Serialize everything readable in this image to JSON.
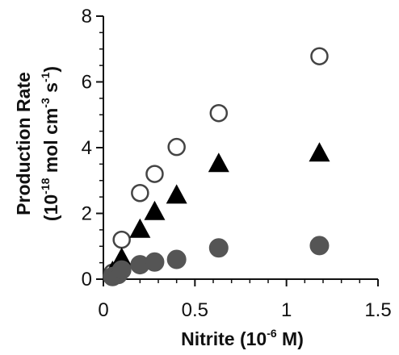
{
  "chart_data": {
    "type": "scatter",
    "xlabel": {
      "prefix": "Nitrite (10",
      "superscript": "-6",
      "suffix": " M)"
    },
    "ylabel": {
      "line1": "Production Rate",
      "line2_prefix": "(10",
      "line2_sup1": "-18",
      "line2_mid": " mol cm",
      "line2_sup2": "-3",
      "line2_s": " s",
      "line2_sup3": "-1",
      "line2_suffix": ")"
    },
    "xlim": [
      0,
      1.5
    ],
    "ylim": [
      0,
      8
    ],
    "x_ticks": [
      0,
      0.5,
      1,
      1.5
    ],
    "x_tick_labels": [
      "0",
      "0.5",
      "1",
      "1.5"
    ],
    "y_ticks": [
      0,
      2,
      4,
      6,
      8
    ],
    "y_tick_labels": [
      "0",
      "2",
      "4",
      "6",
      "8"
    ],
    "minor_ticks": true,
    "grid": false,
    "series": [
      {
        "marker": "circle-open",
        "color": "#444444",
        "points": [
          {
            "x": 0.05,
            "y": 0.2
          },
          {
            "x": 0.1,
            "y": 1.2
          },
          {
            "x": 0.2,
            "y": 2.62
          },
          {
            "x": 0.28,
            "y": 3.2
          },
          {
            "x": 0.4,
            "y": 4.02
          },
          {
            "x": 0.63,
            "y": 5.05
          },
          {
            "x": 1.18,
            "y": 6.78
          }
        ]
      },
      {
        "marker": "triangle-filled",
        "color": "#000000",
        "points": [
          {
            "x": 0.05,
            "y": 0.2
          },
          {
            "x": 0.1,
            "y": 0.6
          },
          {
            "x": 0.2,
            "y": 1.48
          },
          {
            "x": 0.28,
            "y": 2.02
          },
          {
            "x": 0.4,
            "y": 2.52
          },
          {
            "x": 0.63,
            "y": 3.48
          },
          {
            "x": 1.18,
            "y": 3.8
          }
        ]
      },
      {
        "marker": "circle-filled",
        "color": "#555555",
        "points": [
          {
            "x": 0.05,
            "y": 0.08
          },
          {
            "x": 0.08,
            "y": 0.14
          },
          {
            "x": 0.1,
            "y": 0.28
          },
          {
            "x": 0.2,
            "y": 0.44
          },
          {
            "x": 0.28,
            "y": 0.52
          },
          {
            "x": 0.4,
            "y": 0.6
          },
          {
            "x": 0.63,
            "y": 0.95
          },
          {
            "x": 1.18,
            "y": 1.02
          }
        ]
      }
    ]
  }
}
